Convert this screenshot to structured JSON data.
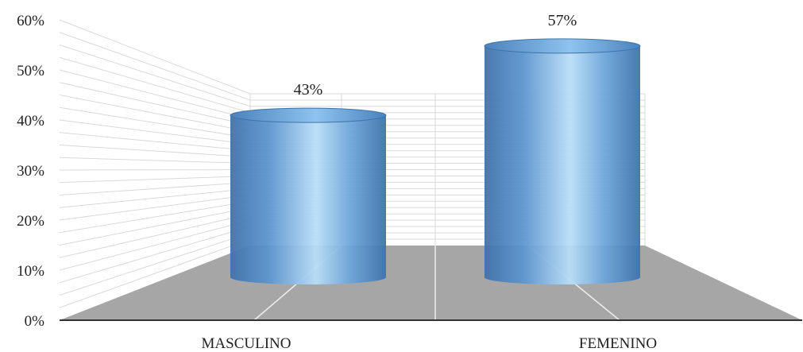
{
  "chart_data": {
    "type": "bar",
    "style": "3d-cylinder",
    "categories": [
      "MASCULINO",
      "FEMENINO"
    ],
    "values": [
      43,
      57
    ],
    "data_labels": [
      "43%",
      "57%"
    ],
    "y_ticks": [
      "0%",
      "10%",
      "20%",
      "30%",
      "40%",
      "50%",
      "60%"
    ],
    "ylim": [
      0,
      60
    ],
    "grid": true,
    "colors": {
      "bar_main": "#6fa8dc",
      "bar_dark": "#4a7fb6",
      "bar_light": "#b8dcf7",
      "floor": "#a6a6a6",
      "grid": "#d9d9d9"
    }
  }
}
